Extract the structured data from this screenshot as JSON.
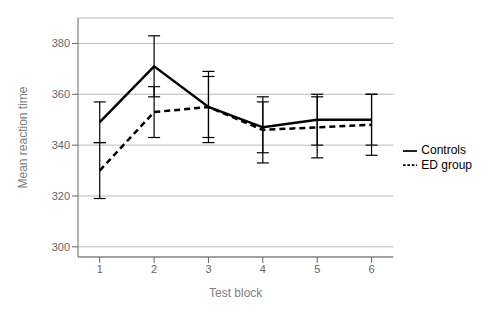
{
  "chart_data": {
    "type": "line",
    "xlabel": "Test block",
    "ylabel": "Mean reaction time",
    "x": [
      1,
      2,
      3,
      4,
      5,
      6
    ],
    "series": [
      {
        "name": "Controls",
        "color": "#000000",
        "line_style": "solid",
        "values": [
          349,
          371,
          355,
          347,
          350,
          350
        ],
        "errors": [
          8,
          12,
          14,
          10,
          10,
          10
        ]
      },
      {
        "name": "ED group",
        "color": "#000000",
        "line_style": "dashed",
        "values": [
          330,
          353,
          355,
          346,
          347,
          348
        ],
        "errors": [
          11,
          10,
          12,
          13,
          12,
          12
        ]
      }
    ],
    "xlim": [
      0.6,
      6.4
    ],
    "xticks": [
      1,
      2,
      3,
      4,
      5,
      6
    ],
    "ylim": [
      296,
      390
    ],
    "yticks": [
      300,
      320,
      340,
      360,
      380
    ],
    "grid": true,
    "legend": "right"
  }
}
